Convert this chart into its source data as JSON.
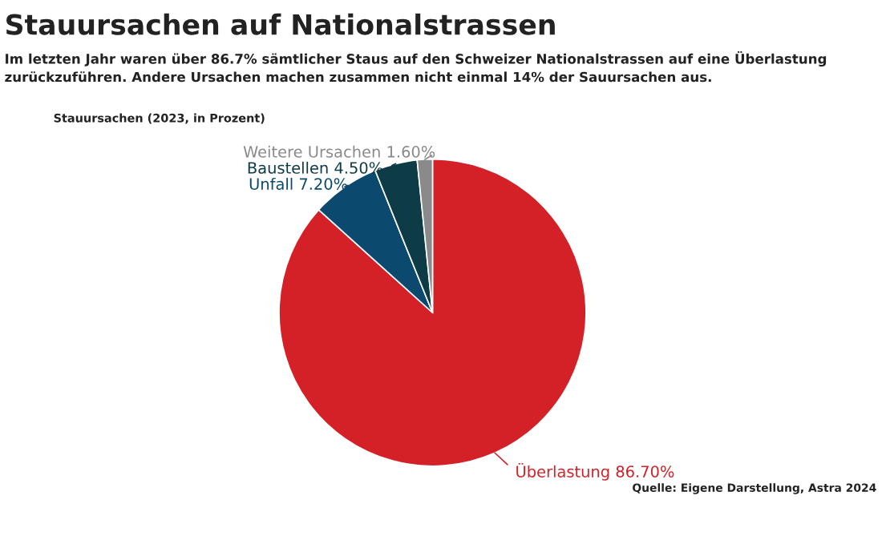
{
  "chart_data": {
    "type": "pie",
    "title": "Stauursachen auf Nationalstrassen",
    "subtitle": "Im letzten Jahr waren über 86.7% sämtlicher Staus auf den Schweizer Nationalstrassen auf eine Überlastung zurückzuführen. Andere Ursachen machen zusammen nicht einmal 14% der Sauursachen aus.",
    "categories": [
      "Überlastung",
      "Unfall",
      "Baustellen",
      "Weitere Ursachen"
    ],
    "values": [
      86.7,
      7.2,
      4.5,
      1.6
    ],
    "value_labels": [
      "86.70%",
      "7.20%",
      "4.50%",
      "1.60%"
    ],
    "colors": [
      "#d42027",
      "#0b4a6e",
      "#0d3b46",
      "#8a8a8a"
    ],
    "annotations": [
      "Stauursachen (2023, in Prozent)",
      "Quelle: Eigene Darstellung, Astra 2024"
    ]
  }
}
